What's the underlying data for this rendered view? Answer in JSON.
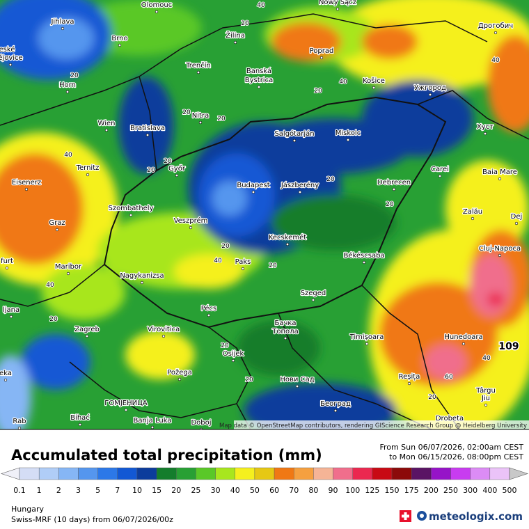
{
  "map": {
    "cities": [
      "Olomouc",
      "Nowy Sącz",
      "Jihlava",
      "Brno",
      "Žilina",
      "Poprad",
      "Дрогобич",
      "Trenčín",
      "Banská",
      "Bystrica",
      "Košice",
      "Ужгород",
      "Horn",
      "Nitra",
      "Wien",
      "Bratislava",
      "Salgótarján",
      "Miskolc",
      "Хуст",
      "Ternitz",
      "Győr",
      "Carei",
      "Baia Mare",
      "Eisenerz",
      "Budapest",
      "Jászberény",
      "Debrecen",
      "Szombathely",
      "Zalău",
      "Graz",
      "Veszprém",
      "Dej",
      "Kecskemét",
      "Cluj-Napoca",
      "Maribor",
      "Paks",
      "Békéscsaba",
      "Nagykanizsa",
      "Szeged",
      "Pécs",
      "ljana",
      "Zagreb",
      "Virovitica",
      "Бачка",
      "Топола",
      "Timișoara",
      "Hunedoara",
      "Osijek",
      "Požega",
      "Reșița",
      "Нови Сад",
      "ГОМЈЕНИЦА",
      "Bihać",
      "Banja Luka",
      "Doboj",
      "Београд",
      "Drobeta",
      "Târgu",
      "Jiu",
      "Rab",
      "eské",
      "ějovice",
      "furt",
      "eka"
    ],
    "contour_labels": [
      "40",
      "20",
      "40",
      "20",
      "40",
      "20",
      "20",
      "20",
      "20",
      "20",
      "40",
      "20",
      "20",
      "20",
      "40",
      "20",
      "40",
      "20",
      "20",
      "20",
      "40",
      "20",
      "40",
      "60"
    ],
    "max_label": "109",
    "attribution": "Map data © OpenStreetMap contributors, rendering GIScience Research Group @ Heidelberg University"
  },
  "header": {
    "title": "Accumulated total precipitation (mm)",
    "period_from": "From Sun 06/07/2026, 02:00am CEST",
    "period_to": "to Mon 06/15/2026, 08:00pm CEST"
  },
  "legend": {
    "ticks": [
      "0.1",
      "1",
      "2",
      "3",
      "5",
      "7",
      "10",
      "15",
      "20",
      "25",
      "30",
      "40",
      "50",
      "60",
      "70",
      "80",
      "90",
      "100",
      "125",
      "150",
      "175",
      "200",
      "250",
      "300",
      "400",
      "500"
    ],
    "colors": [
      "#f0f0f8",
      "#d4ddf5",
      "#b0cdf7",
      "#86b6f5",
      "#5596ee",
      "#2c78e8",
      "#1258d4",
      "#0c3c9c",
      "#147d2c",
      "#28a034",
      "#5ac828",
      "#a8e61e",
      "#f5f01e",
      "#e6c814",
      "#f07814",
      "#f5a040",
      "#f5b496",
      "#f06e8c",
      "#eb2850",
      "#c80a14",
      "#8c0a0a",
      "#5a1464",
      "#9614c8",
      "#c83cf0",
      "#dc8cf5",
      "#ebc3f8",
      "#f5e6fa",
      "#c8c8c8"
    ]
  },
  "footer": {
    "region": "Hungary",
    "model": "Swiss-MRF (10 days)  from  06/07/2026/00z",
    "brand": "meteologix.com"
  }
}
